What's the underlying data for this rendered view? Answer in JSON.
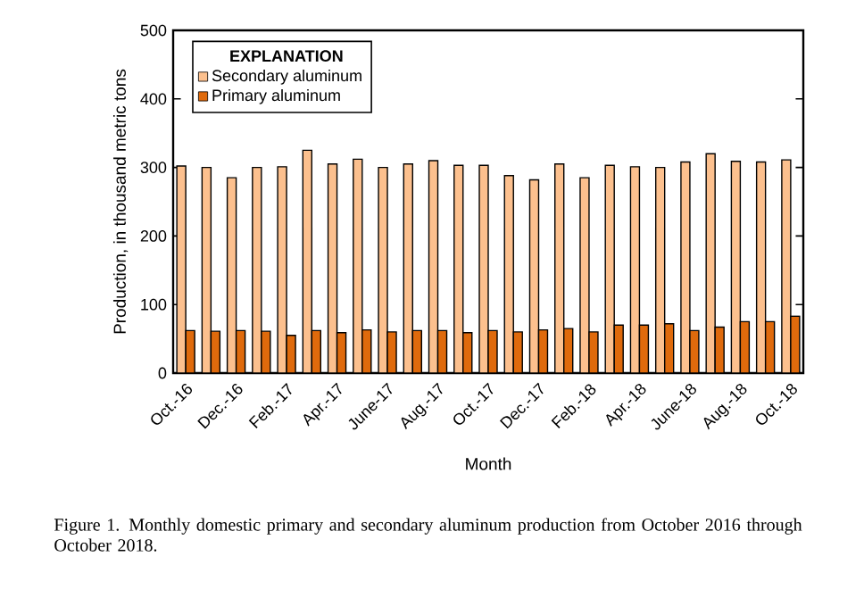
{
  "chart_data": {
    "type": "bar",
    "ylabel": "Production, in thousand metric tons",
    "xlabel": "Month",
    "legend_title": "EXPLANATION",
    "legend": "top left",
    "ylim": [
      0,
      500
    ],
    "yticks": [
      0,
      100,
      200,
      300,
      400,
      500
    ],
    "categories": [
      "Oct.-16",
      null,
      "Dec.-16",
      null,
      "Feb.-17",
      null,
      "Apr.-17",
      null,
      "June-17",
      null,
      "Aug.-17",
      null,
      "Oct.-17",
      null,
      "Dec.-17",
      null,
      "Feb.-18",
      null,
      "Apr.-18",
      null,
      "June-18",
      null,
      "Aug.-18",
      null,
      "Oct.-18"
    ],
    "series": [
      {
        "name": "Secondary aluminum",
        "color": "#fcc08e",
        "values": [
          302,
          300,
          285,
          300,
          301,
          325,
          305,
          312,
          300,
          305,
          310,
          303,
          303,
          288,
          282,
          305,
          285,
          303,
          301,
          300,
          308,
          320,
          309,
          308,
          311
        ]
      },
      {
        "name": "Primary aluminum",
        "color": "#df6a0c",
        "values": [
          62,
          61,
          62,
          61,
          55,
          62,
          59,
          63,
          60,
          62,
          62,
          59,
          62,
          60,
          63,
          65,
          60,
          70,
          70,
          72,
          62,
          67,
          75,
          75,
          83
        ]
      }
    ],
    "annotations": [
      "Figure 1. Monthly domestic primary and secondary aluminum production from October 2016 through October 2018."
    ]
  }
}
